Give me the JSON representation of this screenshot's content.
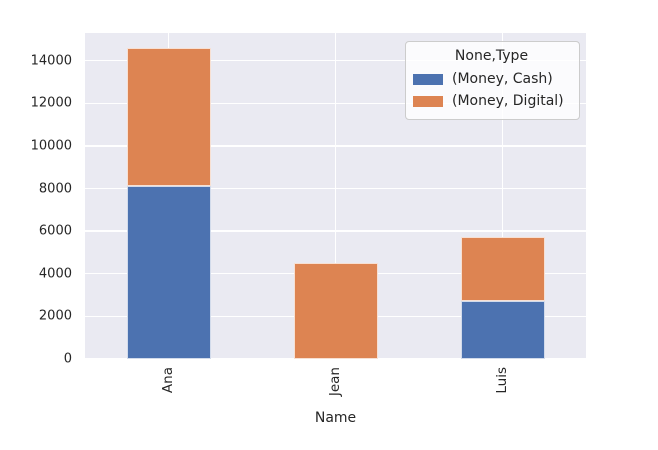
{
  "theme": {
    "figure_bg": "#ffffff",
    "plot_bg": "#eaeaf2",
    "grid_color": "#ffffff",
    "text_color": "#262626",
    "legend_bg": "rgba(255,255,255,0.8)",
    "legend_border": "#cccccc"
  },
  "chart_data": {
    "type": "bar",
    "stacked": true,
    "title": "",
    "xlabel": "Name",
    "ylabel": "",
    "categories": [
      "Ana",
      "Jean",
      "Luis"
    ],
    "series": [
      {
        "name": "(Money, Cash)",
        "color": "#4c72b0",
        "values": [
          8100,
          0,
          2700
        ]
      },
      {
        "name": "(Money, Digital)",
        "color": "#dd8452",
        "values": [
          6500,
          4500,
          3050
        ]
      }
    ],
    "totals": [
      14600,
      4500,
      5750
    ],
    "ylim": [
      0,
      15300
    ],
    "yticks": [
      0,
      2000,
      4000,
      6000,
      8000,
      10000,
      12000,
      14000
    ],
    "grid": true,
    "x_tick_rotation": 90,
    "legend": {
      "title": "None,Type",
      "position": "upper-right"
    }
  }
}
